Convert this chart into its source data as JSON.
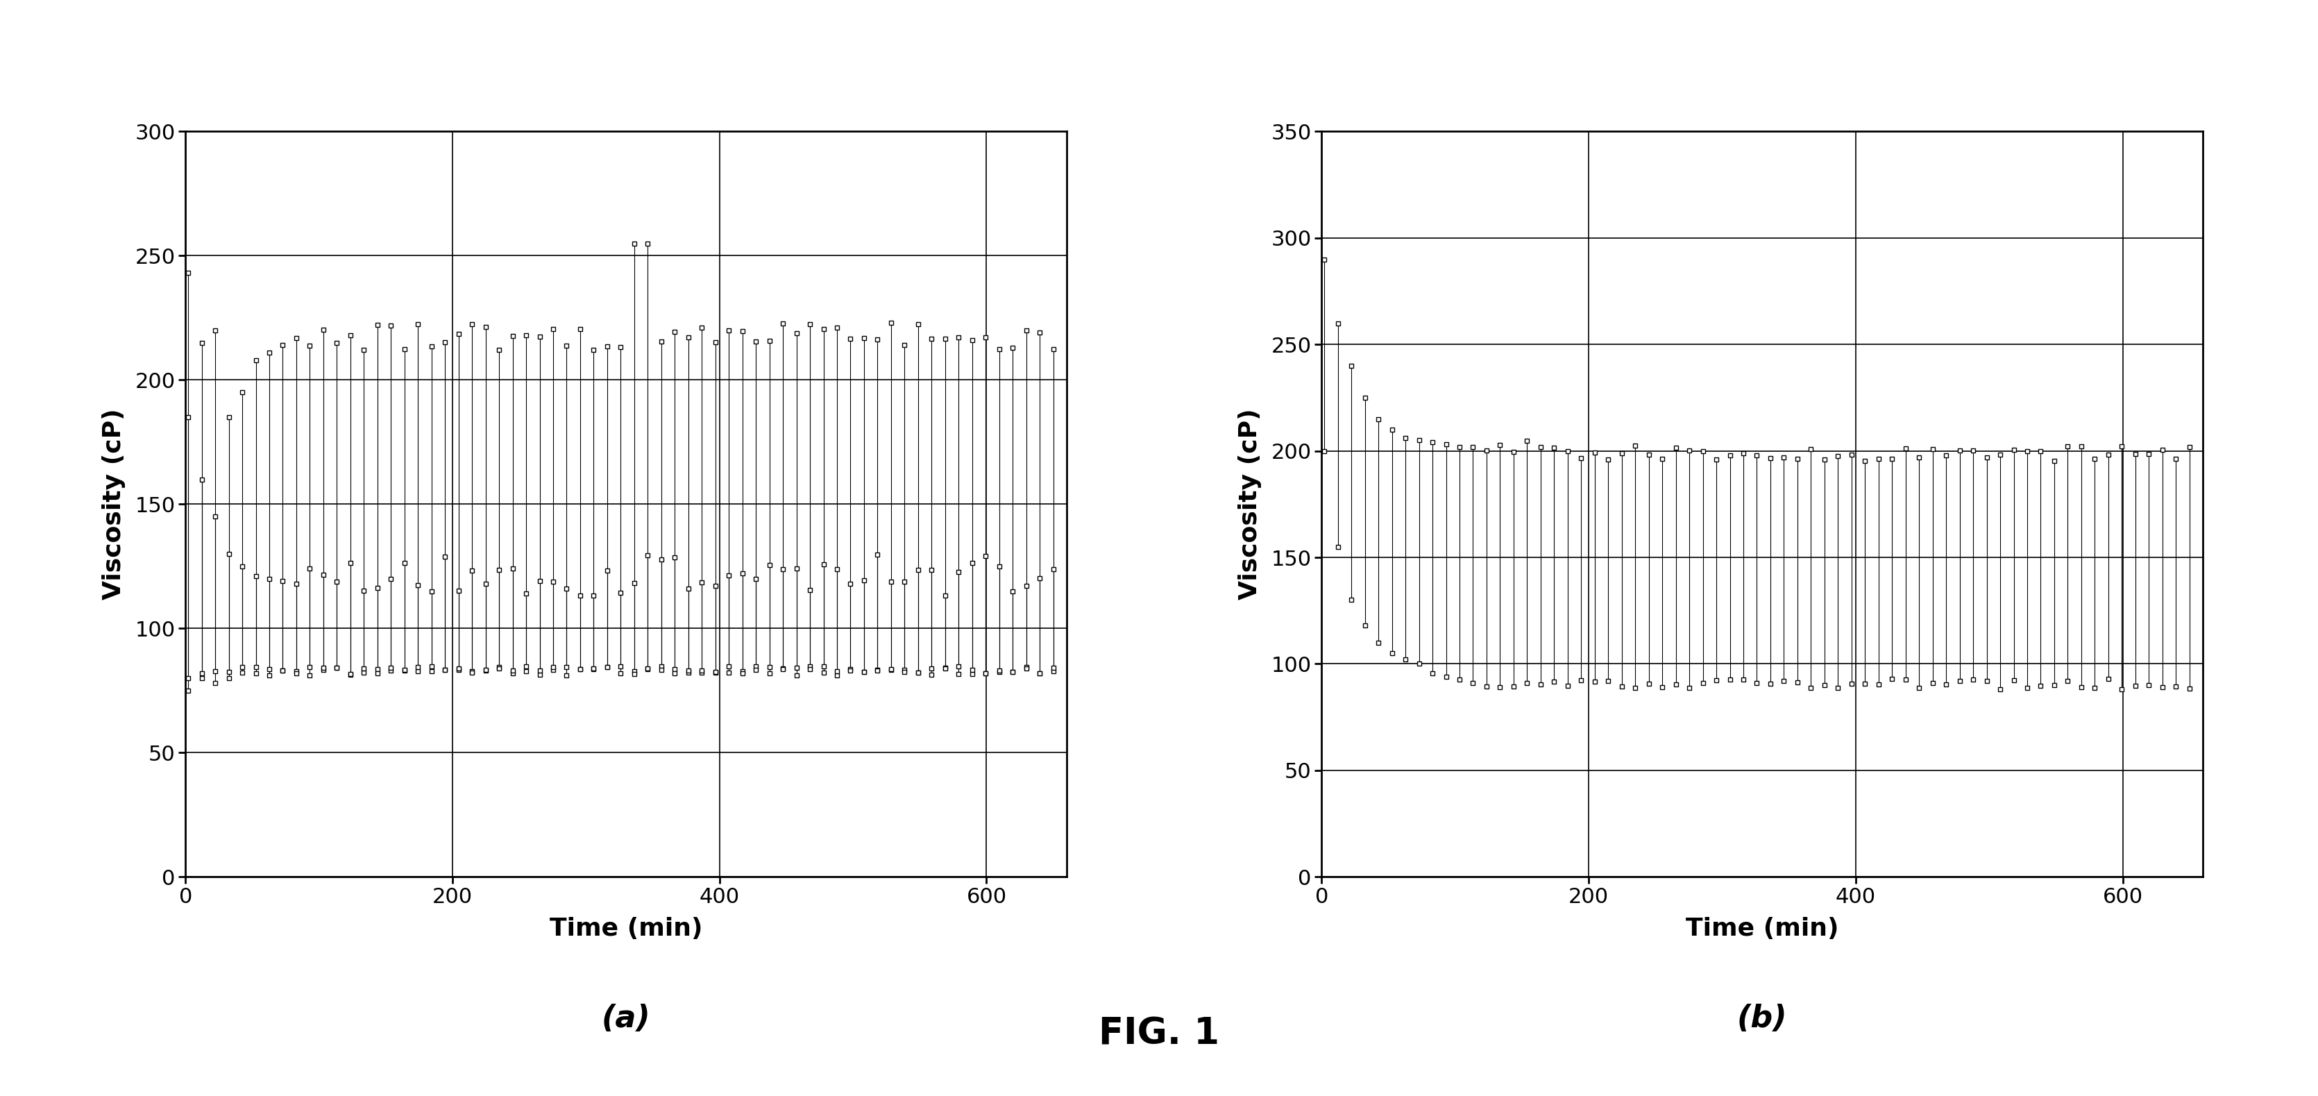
{
  "fig_title": "FIG. 1",
  "subplot_labels": [
    "(a)",
    "(b)"
  ],
  "chart_a": {
    "ylabel": "Viscosity (cP)",
    "xlabel": "Time (min)",
    "ylim": [
      0,
      300
    ],
    "xlim": [
      0,
      660
    ],
    "yticks": [
      0,
      50,
      100,
      150,
      200,
      250,
      300
    ],
    "xticks": [
      0,
      200,
      400,
      600
    ]
  },
  "chart_b": {
    "ylabel": "Viscosity (cP)",
    "xlabel": "Time (min)",
    "ylim": [
      0,
      350
    ],
    "xlim": [
      0,
      660
    ],
    "yticks": [
      0,
      50,
      100,
      150,
      200,
      250,
      300,
      350
    ],
    "xticks": [
      0,
      200,
      400,
      600
    ]
  },
  "bg_color": "#ffffff",
  "tick_fontsize": 22,
  "label_fontsize": 26,
  "sublabel_fontsize": 32,
  "figtitle_fontsize": 38
}
